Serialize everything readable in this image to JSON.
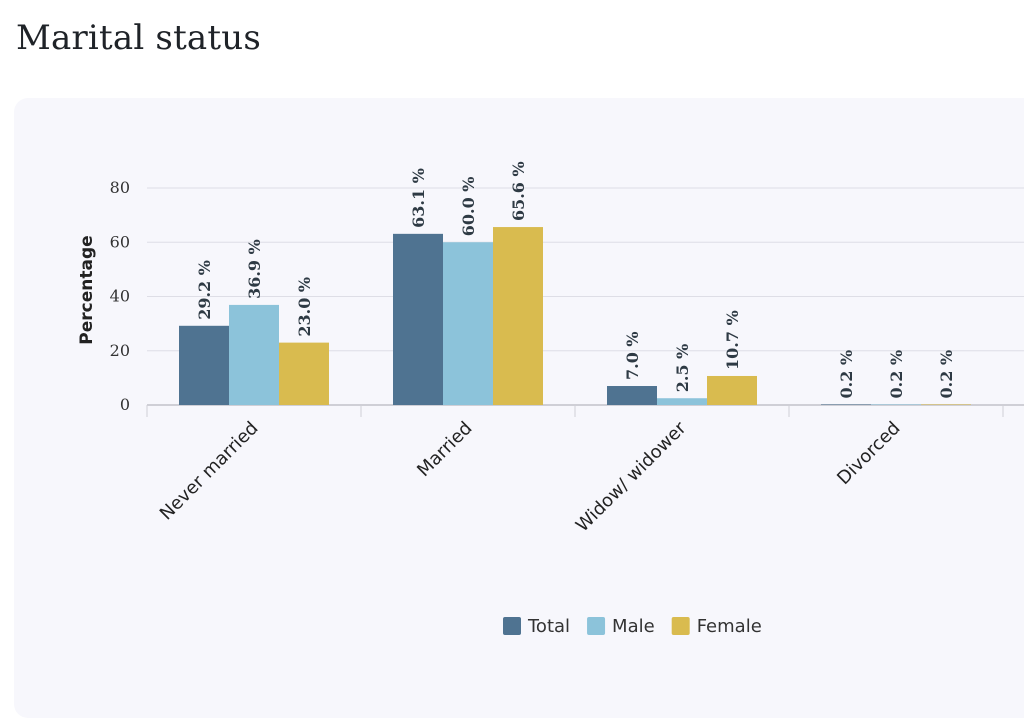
{
  "title": "Marital status",
  "chart_data": {
    "type": "bar",
    "categories": [
      "Never married",
      "Married",
      "Widow/ widower",
      "Divorced"
    ],
    "series": [
      {
        "name": "Total",
        "color": "#4f7391",
        "values": [
          29.2,
          63.1,
          7.0,
          0.2
        ],
        "labels": [
          "29.2 %",
          "63.1 %",
          "7.0 %",
          "0.2 %"
        ]
      },
      {
        "name": "Male",
        "color": "#8cc3da",
        "values": [
          36.9,
          60.0,
          2.5,
          0.2
        ],
        "labels": [
          "36.9 %",
          "60.0 %",
          "2.5 %",
          "0.2 %"
        ]
      },
      {
        "name": "Female",
        "color": "#d9bb4f",
        "values": [
          23.0,
          65.6,
          10.7,
          0.2
        ],
        "labels": [
          "23.0 %",
          "65.6 %",
          "10.7 %",
          "0.2 %"
        ]
      }
    ],
    "ylabel": "Percentage",
    "yticks": [
      "0",
      "20",
      "40",
      "60",
      "80"
    ],
    "ylim": [
      0,
      80
    ],
    "grid": true,
    "legend_position": "bottom-center"
  }
}
